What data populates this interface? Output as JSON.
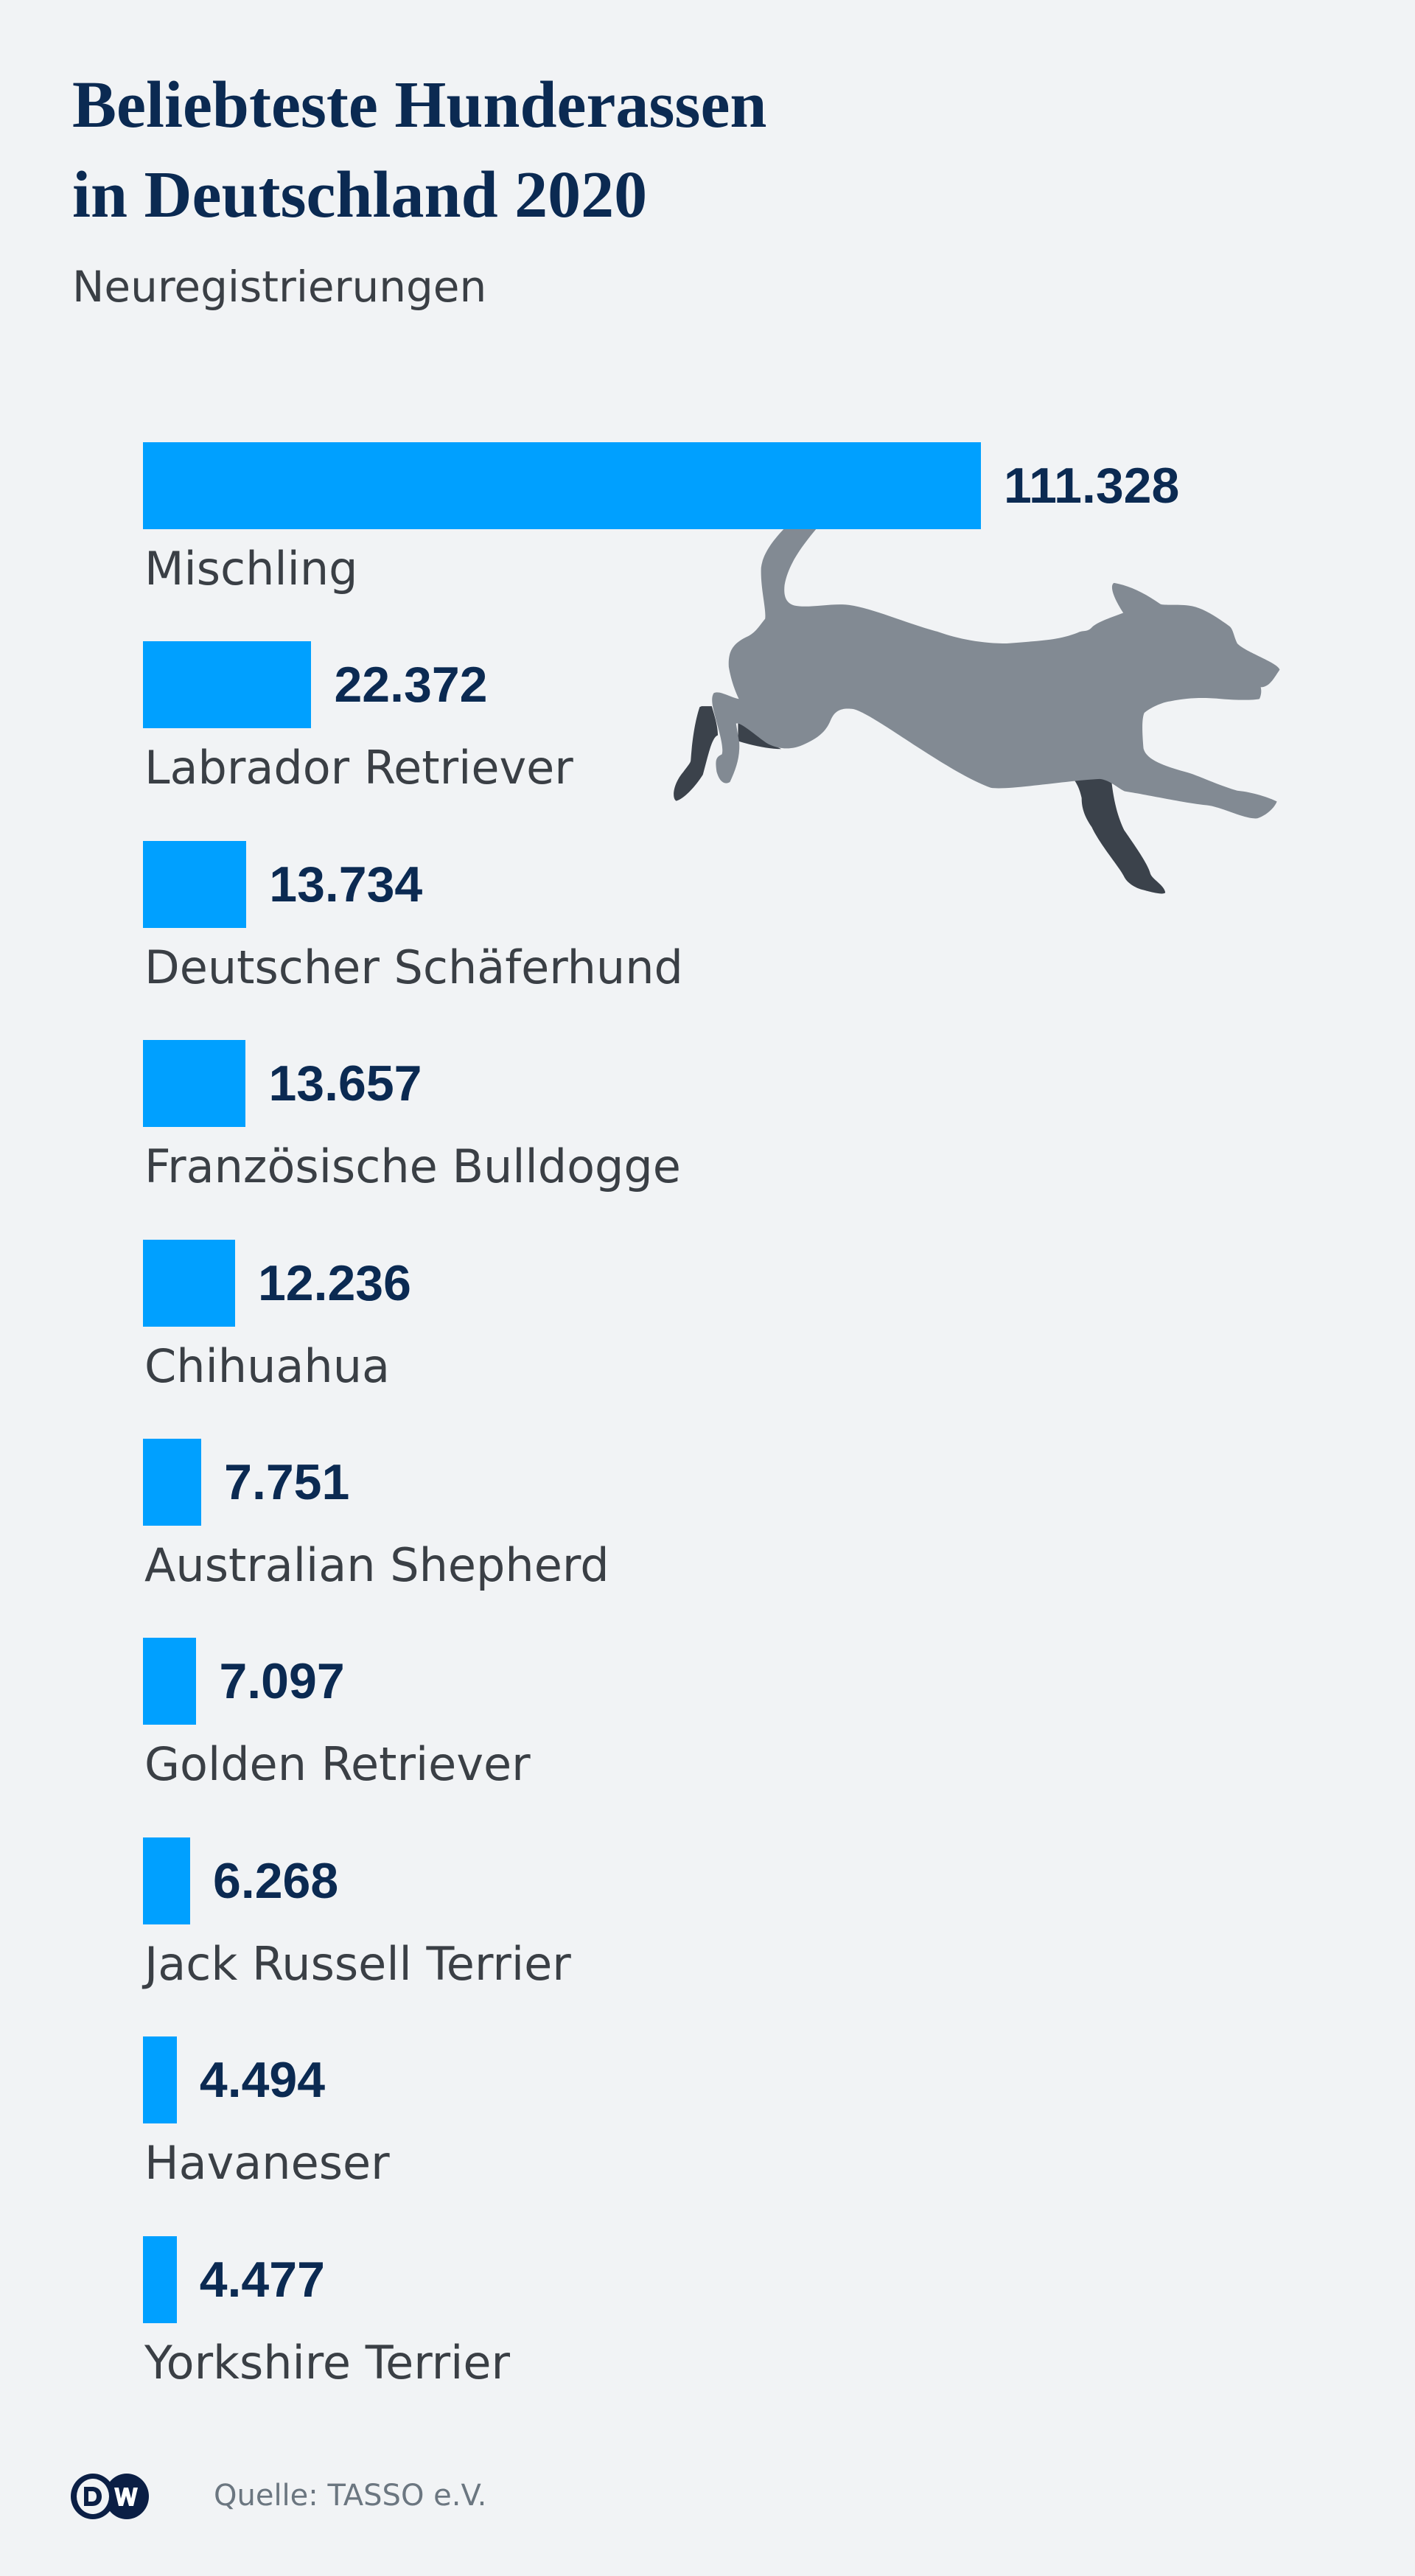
{
  "colors": {
    "bar": "#00a0ff",
    "background": "#f1f3f5",
    "title": "#0b2a52",
    "dog_body": "#828a93",
    "dog_dark": "#3b424b"
  },
  "chart_data": {
    "type": "bar",
    "orientation": "horizontal",
    "title_line1": "Beliebteste Hunderassen",
    "title_line2": "in Deutschland 2020",
    "subtitle": "Neuregistrierungen",
    "categories": [
      "Mischling",
      "Labrador Retriever",
      "Deutscher Schäferhund",
      "Französische Bulldogge",
      "Chihuahua",
      "Australian Shepherd",
      "Golden Retriever",
      "Jack Russell Terrier",
      "Havaneser",
      "Yorkshire Terrier"
    ],
    "values": [
      111328,
      22372,
      13734,
      13657,
      12236,
      7751,
      7097,
      6268,
      4494,
      4477
    ],
    "value_labels": [
      "111.328",
      "22.372",
      "13.734",
      "13.657",
      "12.236",
      "7.751",
      "7.097",
      "6.268",
      "4.494",
      "4.477"
    ],
    "xlabel": "",
    "ylabel": "",
    "xlim": [
      0,
      111328
    ],
    "grid": false
  },
  "footer": {
    "logo_text": "DW",
    "source": "Quelle: TASSO e.V."
  },
  "icons": {
    "illustration": "running-dog-icon",
    "logo": "dw-logo"
  }
}
